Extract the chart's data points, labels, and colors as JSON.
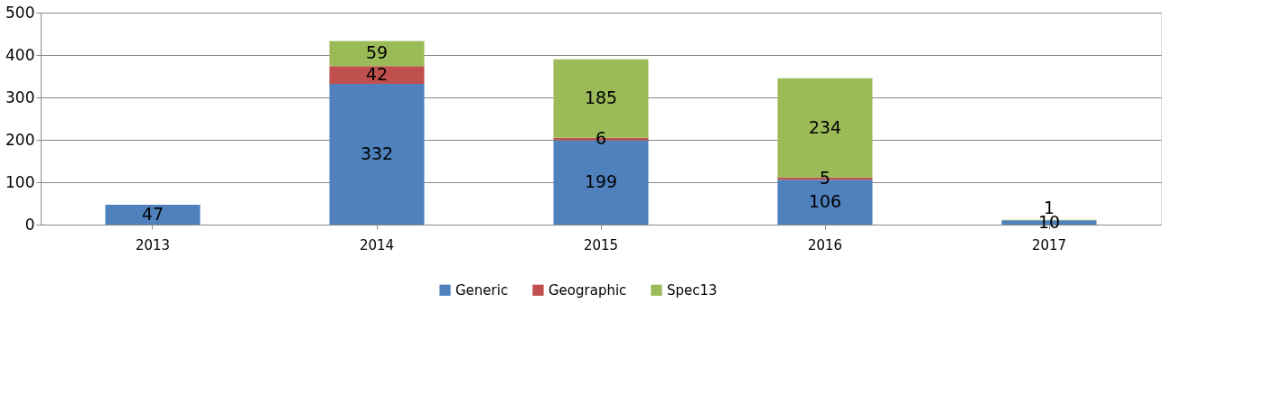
{
  "chart_data": {
    "type": "bar",
    "stacked": true,
    "categories": [
      "2013",
      "2014",
      "2015",
      "2016",
      "2017"
    ],
    "series": [
      {
        "name": "Generic",
        "color": "#4f81bd",
        "values": [
          47,
          332,
          199,
          106,
          10
        ]
      },
      {
        "name": "Geographic",
        "color": "#c0504d",
        "values": [
          null,
          42,
          6,
          5,
          null
        ]
      },
      {
        "name": "Spec13",
        "color": "#9bbb59",
        "values": [
          null,
          59,
          185,
          234,
          1
        ]
      }
    ],
    "ylim": [
      0,
      500
    ],
    "yticks": [
      0,
      100,
      200,
      300,
      400,
      500
    ],
    "grid": "y",
    "legend": "bottom",
    "data_labels": true
  }
}
